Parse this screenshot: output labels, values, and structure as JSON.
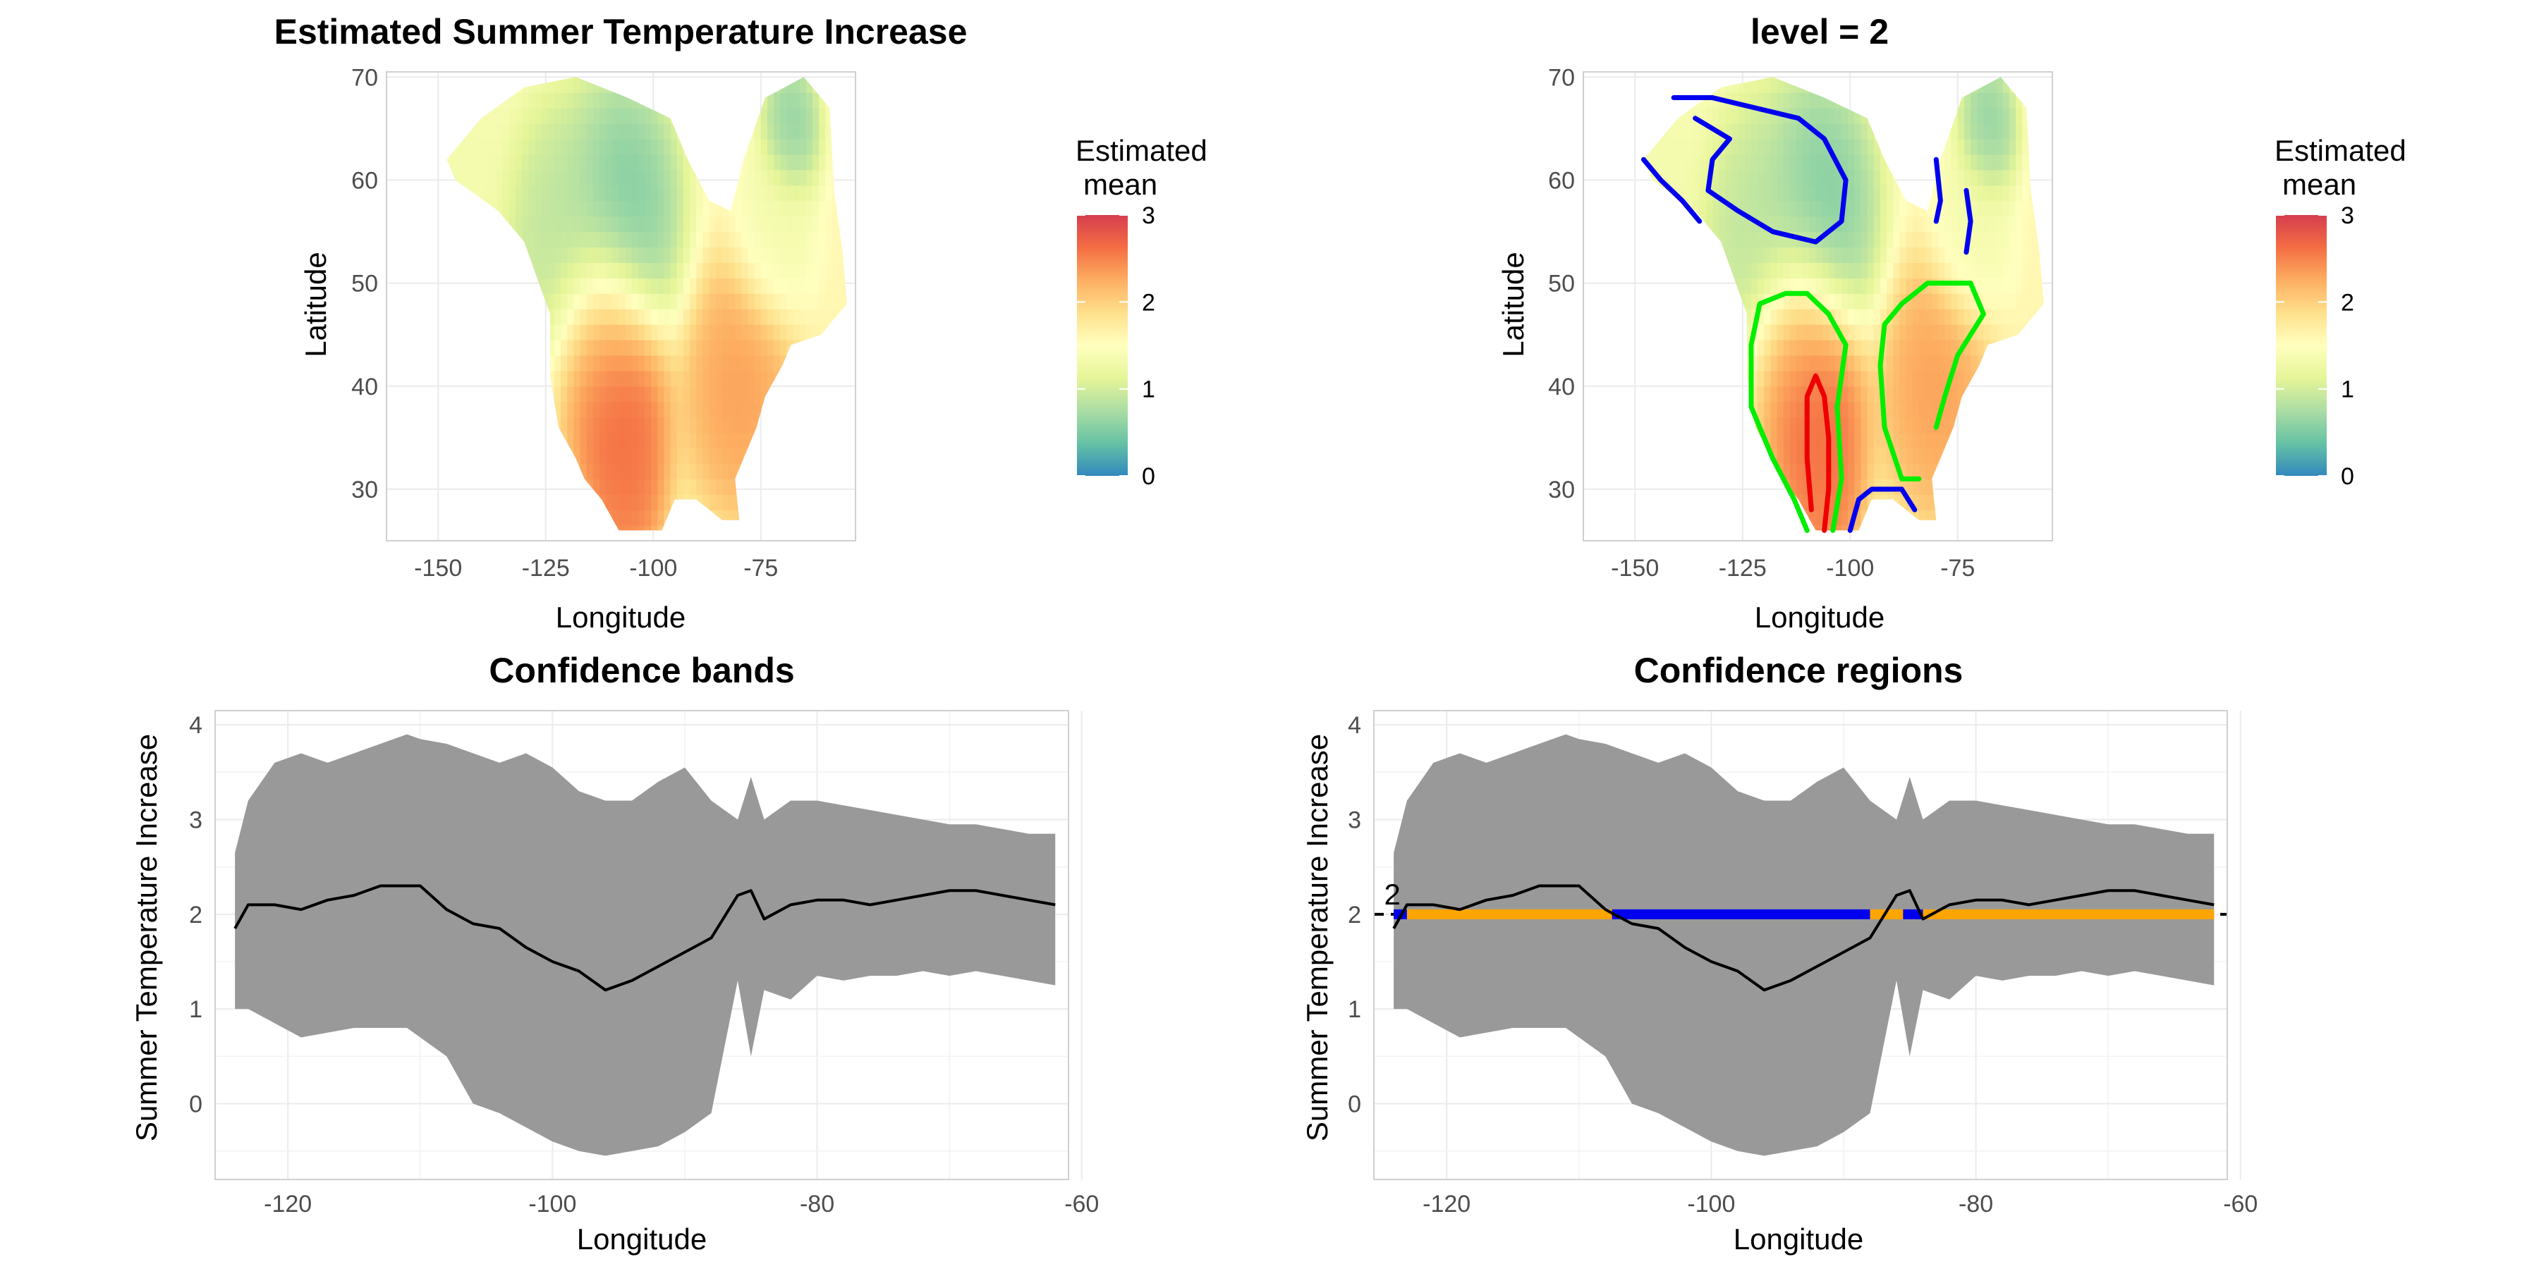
{
  "colors": {
    "ramp": [
      "#3288bd",
      "#66c2a5",
      "#abdda4",
      "#e6f598",
      "#ffffbf",
      "#fee08b",
      "#fdae61",
      "#f46d43",
      "#d53e4f"
    ],
    "band": "#999999",
    "mean_line": "#000000",
    "contour_low": "#0000ee",
    "contour_mid": "#00ee00",
    "contour_high": "#ee0000",
    "region_below": "#0000ee",
    "region_above": "#ffa500",
    "grid": "#ebebeb",
    "panel_border": "#d0d0d0"
  },
  "chart_data": [
    {
      "id": "map_mean",
      "type": "heatmap",
      "title": "Estimated Summer Temperature Increase",
      "xlabel": "Longitude",
      "ylabel": "Latitude",
      "xlim": [
        -162,
        -53
      ],
      "ylim": [
        25,
        70.5
      ],
      "xticks": [
        -150,
        -125,
        -100,
        -75
      ],
      "yticks": [
        30,
        40,
        50,
        60,
        70
      ],
      "legend": {
        "title_line1": "Estimated",
        "title_line2": "mean",
        "min": 0,
        "max": 3,
        "ticks": [
          0,
          1,
          2,
          3
        ],
        "position": "right"
      },
      "region_outline": [
        [
          -148,
          62
        ],
        [
          -140,
          66
        ],
        [
          -130,
          69
        ],
        [
          -118,
          70
        ],
        [
          -106,
          68
        ],
        [
          -96,
          66
        ],
        [
          -92,
          62
        ],
        [
          -87,
          58
        ],
        [
          -82,
          57
        ],
        [
          -79,
          62
        ],
        [
          -74,
          68
        ],
        [
          -65,
          70
        ],
        [
          -59,
          67
        ],
        [
          -58,
          59
        ],
        [
          -56,
          53
        ],
        [
          -55,
          48
        ],
        [
          -61,
          45
        ],
        [
          -68,
          44
        ],
        [
          -70,
          42
        ],
        [
          -74,
          39
        ],
        [
          -76,
          36
        ],
        [
          -78,
          34
        ],
        [
          -81,
          31
        ],
        [
          -80,
          27
        ],
        [
          -84,
          27
        ],
        [
          -90,
          29
        ],
        [
          -95,
          29
        ],
        [
          -98,
          26
        ],
        [
          -103,
          26
        ],
        [
          -108,
          26
        ],
        [
          -112,
          29
        ],
        [
          -116,
          31
        ],
        [
          -118,
          33
        ],
        [
          -122,
          36
        ],
        [
          -124,
          41
        ],
        [
          -124,
          47
        ],
        [
          -130,
          54
        ],
        [
          -136,
          57
        ],
        [
          -146,
          60
        ]
      ],
      "value_surface": [
        {
          "lon": -108,
          "lat": 38,
          "value": 2.8,
          "spread": 8
        },
        {
          "lon": -112,
          "lat": 44,
          "value": 2.4,
          "spread": 8
        },
        {
          "lon": -106,
          "lat": 30,
          "value": 2.6,
          "spread": 6
        },
        {
          "lon": -80,
          "lat": 40,
          "value": 2.4,
          "spread": 9
        },
        {
          "lon": -107,
          "lat": 57,
          "value": 0.4,
          "spread": 10
        },
        {
          "lon": -122,
          "lat": 55,
          "value": 0.8,
          "spread": 10
        },
        {
          "lon": -68,
          "lat": 65,
          "value": 0.5,
          "spread": 5
        },
        {
          "lon": -72,
          "lat": 55,
          "value": 1.3,
          "spread": 7
        },
        {
          "lon": -145,
          "lat": 63,
          "value": 1.3,
          "spread": 8
        }
      ],
      "background_value": 1.6
    },
    {
      "id": "map_level",
      "type": "heatmap",
      "title": "level = 2",
      "xlabel": "Longitude",
      "ylabel": "Latitude",
      "xlim": [
        -162,
        -53
      ],
      "ylim": [
        25,
        70.5
      ],
      "xticks": [
        -150,
        -125,
        -100,
        -75
      ],
      "yticks": [
        30,
        40,
        50,
        60,
        70
      ],
      "legend": {
        "title_line1": "Estimated",
        "title_line2": "mean",
        "min": 0,
        "max": 3,
        "ticks": [
          0,
          1,
          2,
          3
        ],
        "position": "right"
      },
      "same_surface_as": "map_mean",
      "contours": [
        {
          "name": "lower bound region (blue)",
          "color_key": "contour_low",
          "points": [
            [
              -141,
              68
            ],
            [
              -132,
              68
            ],
            [
              -122,
              67
            ],
            [
              -112,
              66
            ],
            [
              -106,
              64
            ],
            [
              -101,
              60
            ],
            [
              -102,
              56
            ],
            [
              -108,
              54
            ],
            [
              -118,
              55
            ],
            [
              -126,
              57
            ],
            [
              -133,
              59
            ],
            [
              -132,
              62
            ],
            [
              -128,
              64
            ],
            [
              -136,
              66
            ]
          ]
        },
        {
          "name": "blue west coast",
          "color_key": "contour_low",
          "points": [
            [
              -148,
              62
            ],
            [
              -144,
              60
            ],
            [
              -139,
              58
            ],
            [
              -135,
              56
            ]
          ]
        },
        {
          "name": "blue east",
          "color_key": "contour_low",
          "points": [
            [
              -80,
              62
            ],
            [
              -79,
              58
            ],
            [
              -80,
              56
            ]
          ]
        },
        {
          "name": "blue east 2",
          "color_key": "contour_low",
          "points": [
            [
              -73,
              59
            ],
            [
              -72,
              56
            ],
            [
              -73,
              53
            ]
          ]
        },
        {
          "name": "blue south",
          "color_key": "contour_low",
          "points": [
            [
              -100,
              26
            ],
            [
              -98,
              29
            ],
            [
              -95,
              30
            ],
            [
              -92,
              30
            ],
            [
              -88,
              30
            ],
            [
              -85,
              28
            ]
          ]
        },
        {
          "name": "outer region (green)",
          "color_key": "contour_mid",
          "points": [
            [
              -104,
              26
            ],
            [
              -102,
              31
            ],
            [
              -103,
              38
            ],
            [
              -101,
              44
            ],
            [
              -105,
              47
            ],
            [
              -110,
              49
            ],
            [
              -115,
              49
            ],
            [
              -121,
              48
            ],
            [
              -123,
              44
            ],
            [
              -123,
              38
            ],
            [
              -118,
              33
            ],
            [
              -113,
              29
            ],
            [
              -110,
              26
            ]
          ]
        },
        {
          "name": "green east",
          "color_key": "contour_mid",
          "points": [
            [
              -84,
              31
            ],
            [
              -88,
              31
            ],
            [
              -92,
              36
            ],
            [
              -93,
              42
            ],
            [
              -92,
              46
            ],
            [
              -88,
              48
            ],
            [
              -82,
              50
            ],
            [
              -72,
              50
            ],
            [
              -69,
              47
            ],
            [
              -75,
              43
            ],
            [
              -78,
              39
            ],
            [
              -80,
              36
            ]
          ]
        },
        {
          "name": "inner region (red)",
          "color_key": "contour_high",
          "points": [
            [
              -106,
              26
            ],
            [
              -105,
              30
            ],
            [
              -105,
              35
            ],
            [
              -106,
              39
            ],
            [
              -108,
              41
            ],
            [
              -110,
              39
            ],
            [
              -110,
              33
            ],
            [
              -109,
              28
            ]
          ]
        }
      ]
    },
    {
      "id": "bands",
      "type": "area",
      "title": "Confidence bands",
      "xlabel": "Longitude",
      "ylabel": "Summer Temperature Increase",
      "xlim": [
        -125.5,
        -61
      ],
      "ylim": [
        -0.8,
        4.15
      ],
      "xticks": [
        -120,
        -100,
        -80,
        -60
      ],
      "yticks": [
        0,
        1,
        2,
        3,
        4
      ],
      "x": [
        -124,
        -123,
        -121,
        -119,
        -117,
        -115,
        -113,
        -111,
        -110,
        -108,
        -106,
        -104,
        -102,
        -100,
        -98,
        -96,
        -94,
        -92,
        -90,
        -88,
        -86,
        -85,
        -84,
        -82,
        -80,
        -78,
        -76,
        -74,
        -72,
        -70,
        -68,
        -66,
        -64,
        -62
      ],
      "upper": [
        2.65,
        3.2,
        3.6,
        3.7,
        3.6,
        3.7,
        3.8,
        3.9,
        3.85,
        3.8,
        3.7,
        3.6,
        3.7,
        3.55,
        3.3,
        3.2,
        3.2,
        3.4,
        3.55,
        3.2,
        3.0,
        3.45,
        3.0,
        3.2,
        3.2,
        3.15,
        3.1,
        3.05,
        3.0,
        2.95,
        2.95,
        2.9,
        2.85,
        2.85
      ],
      "lower": [
        1.0,
        1.0,
        0.85,
        0.7,
        0.75,
        0.8,
        0.8,
        0.8,
        0.7,
        0.5,
        0.0,
        -0.1,
        -0.25,
        -0.4,
        -0.5,
        -0.55,
        -0.5,
        -0.45,
        -0.3,
        -0.1,
        1.3,
        0.5,
        1.2,
        1.1,
        1.35,
        1.3,
        1.35,
        1.35,
        1.4,
        1.35,
        1.4,
        1.35,
        1.3,
        1.25
      ],
      "mean": [
        1.85,
        2.1,
        2.1,
        2.05,
        2.15,
        2.2,
        2.3,
        2.3,
        2.3,
        2.05,
        1.9,
        1.85,
        1.65,
        1.5,
        1.4,
        1.2,
        1.3,
        1.45,
        1.6,
        1.75,
        2.2,
        2.25,
        1.95,
        2.1,
        2.15,
        2.15,
        2.1,
        2.15,
        2.2,
        2.25,
        2.25,
        2.2,
        2.15,
        2.1
      ]
    },
    {
      "id": "regions",
      "type": "area",
      "title": "Confidence regions",
      "xlabel": "Longitude",
      "ylabel": "Summer Temperature Increase",
      "xlim": [
        -125.5,
        -61
      ],
      "ylim": [
        -0.8,
        4.15
      ],
      "xticks": [
        -120,
        -100,
        -80,
        -60
      ],
      "yticks": [
        0,
        1,
        2,
        3,
        4
      ],
      "same_series_as": "bands",
      "level": 2,
      "level_label": "2",
      "segments": [
        {
          "from": -124,
          "to": -123,
          "color_key": "region_below"
        },
        {
          "from": -123,
          "to": -107.5,
          "color_key": "region_above"
        },
        {
          "from": -107.5,
          "to": -88,
          "color_key": "region_below"
        },
        {
          "from": -88,
          "to": -85.5,
          "color_key": "region_above"
        },
        {
          "from": -85.5,
          "to": -84,
          "color_key": "region_below"
        },
        {
          "from": -84,
          "to": -62,
          "color_key": "region_above"
        }
      ]
    }
  ]
}
